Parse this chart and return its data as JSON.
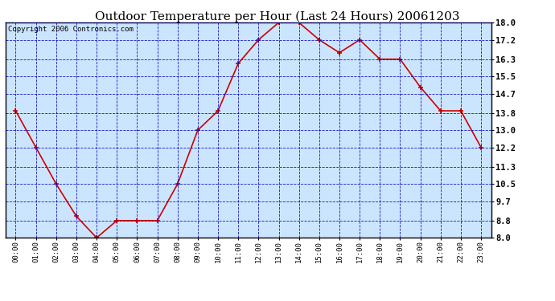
{
  "title": "Outdoor Temperature per Hour (Last 24 Hours) 20061203",
  "copyright_text": "Copyright 2006 Contronics.com",
  "hours": [
    "00:00",
    "01:00",
    "02:00",
    "03:00",
    "04:00",
    "05:00",
    "06:00",
    "07:00",
    "08:00",
    "09:00",
    "10:00",
    "11:00",
    "12:00",
    "13:00",
    "14:00",
    "15:00",
    "16:00",
    "17:00",
    "18:00",
    "19:00",
    "20:00",
    "21:00",
    "22:00",
    "23:00"
  ],
  "temperatures": [
    13.9,
    12.2,
    10.5,
    9.0,
    8.0,
    8.8,
    8.8,
    8.8,
    10.5,
    13.0,
    13.9,
    16.1,
    17.2,
    18.0,
    18.0,
    17.2,
    16.6,
    17.2,
    16.3,
    16.3,
    15.0,
    13.9,
    13.9,
    12.2
  ],
  "ylim": [
    8.0,
    18.0
  ],
  "yticks": [
    8.0,
    8.8,
    9.7,
    10.5,
    11.3,
    12.2,
    13.0,
    13.8,
    14.7,
    15.5,
    16.3,
    17.2,
    18.0
  ],
  "line_color": "#cc0000",
  "marker_color": "#cc0000",
  "bg_color": "#cce5ff",
  "grid_color": "#0000bb",
  "border_color": "#000000",
  "title_fontsize": 11,
  "copyright_fontsize": 6.5
}
